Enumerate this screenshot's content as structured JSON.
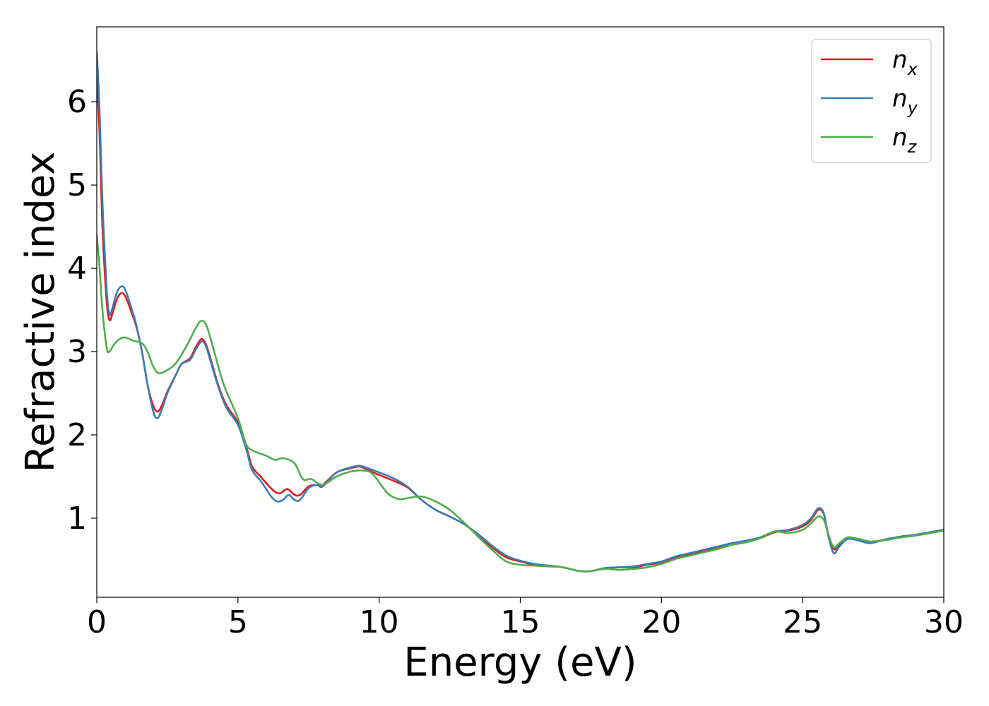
{
  "chart_data": {
    "type": "line",
    "xlabel": "Energy (eV)",
    "ylabel": "Refractive index",
    "xlim": [
      0,
      30
    ],
    "ylim": [
      0.05,
      6.9
    ],
    "xticks": [
      0,
      5,
      10,
      15,
      20,
      25,
      30
    ],
    "yticks": [
      1,
      2,
      3,
      4,
      5,
      6
    ],
    "grid": false,
    "legend_position": "top-right",
    "series": [
      {
        "name": "n",
        "subscript": "x",
        "color": "#e41a1c",
        "points": [
          [
            0,
            6.3
          ],
          [
            0.1,
            5.6
          ],
          [
            0.2,
            4.5
          ],
          [
            0.35,
            3.6
          ],
          [
            0.45,
            3.38
          ],
          [
            0.55,
            3.45
          ],
          [
            0.7,
            3.62
          ],
          [
            0.85,
            3.7
          ],
          [
            1.0,
            3.67
          ],
          [
            1.2,
            3.5
          ],
          [
            1.4,
            3.3
          ],
          [
            1.6,
            3.0
          ],
          [
            1.8,
            2.6
          ],
          [
            2.0,
            2.35
          ],
          [
            2.15,
            2.28
          ],
          [
            2.3,
            2.35
          ],
          [
            2.5,
            2.52
          ],
          [
            2.8,
            2.72
          ],
          [
            3.0,
            2.85
          ],
          [
            3.3,
            2.92
          ],
          [
            3.5,
            3.05
          ],
          [
            3.7,
            3.15
          ],
          [
            3.85,
            3.1
          ],
          [
            4.0,
            2.95
          ],
          [
            4.3,
            2.6
          ],
          [
            4.6,
            2.35
          ],
          [
            5.0,
            2.15
          ],
          [
            5.3,
            1.85
          ],
          [
            5.5,
            1.62
          ],
          [
            5.8,
            1.5
          ],
          [
            6.0,
            1.42
          ],
          [
            6.3,
            1.32
          ],
          [
            6.5,
            1.3
          ],
          [
            6.75,
            1.35
          ],
          [
            7.0,
            1.28
          ],
          [
            7.2,
            1.28
          ],
          [
            7.5,
            1.38
          ],
          [
            7.8,
            1.4
          ],
          [
            8.0,
            1.4
          ],
          [
            8.5,
            1.55
          ],
          [
            9.0,
            1.6
          ],
          [
            9.3,
            1.62
          ],
          [
            9.6,
            1.58
          ],
          [
            10.0,
            1.52
          ],
          [
            10.5,
            1.45
          ],
          [
            11.0,
            1.37
          ],
          [
            11.5,
            1.22
          ],
          [
            12.0,
            1.1
          ],
          [
            12.5,
            1.02
          ],
          [
            13.0,
            0.93
          ],
          [
            13.5,
            0.8
          ],
          [
            14.0,
            0.65
          ],
          [
            14.5,
            0.53
          ],
          [
            15.0,
            0.48
          ],
          [
            15.5,
            0.44
          ],
          [
            16.0,
            0.43
          ],
          [
            16.5,
            0.41
          ],
          [
            17.0,
            0.37
          ],
          [
            17.3,
            0.36
          ],
          [
            17.6,
            0.37
          ],
          [
            18.0,
            0.4
          ],
          [
            18.5,
            0.41
          ],
          [
            19.0,
            0.41
          ],
          [
            19.5,
            0.44
          ],
          [
            20.0,
            0.47
          ],
          [
            20.5,
            0.53
          ],
          [
            21.0,
            0.57
          ],
          [
            21.5,
            0.6
          ],
          [
            22.0,
            0.64
          ],
          [
            22.5,
            0.69
          ],
          [
            23.0,
            0.72
          ],
          [
            23.5,
            0.76
          ],
          [
            24.0,
            0.83
          ],
          [
            24.5,
            0.85
          ],
          [
            25.0,
            0.9
          ],
          [
            25.3,
            0.98
          ],
          [
            25.55,
            1.1
          ],
          [
            25.75,
            1.05
          ],
          [
            25.9,
            0.82
          ],
          [
            26.1,
            0.63
          ],
          [
            26.3,
            0.68
          ],
          [
            26.6,
            0.76
          ],
          [
            27.0,
            0.74
          ],
          [
            27.4,
            0.71
          ],
          [
            28.0,
            0.75
          ],
          [
            28.5,
            0.78
          ],
          [
            29.0,
            0.8
          ],
          [
            29.5,
            0.83
          ],
          [
            30.0,
            0.86
          ]
        ]
      },
      {
        "name": "n",
        "subscript": "y",
        "color": "#377eb8",
        "points": [
          [
            0,
            6.6
          ],
          [
            0.1,
            5.9
          ],
          [
            0.2,
            4.8
          ],
          [
            0.35,
            3.75
          ],
          [
            0.45,
            3.45
          ],
          [
            0.55,
            3.52
          ],
          [
            0.7,
            3.7
          ],
          [
            0.85,
            3.78
          ],
          [
            1.0,
            3.75
          ],
          [
            1.2,
            3.55
          ],
          [
            1.4,
            3.32
          ],
          [
            1.6,
            3.0
          ],
          [
            1.8,
            2.6
          ],
          [
            2.0,
            2.28
          ],
          [
            2.15,
            2.2
          ],
          [
            2.3,
            2.3
          ],
          [
            2.5,
            2.5
          ],
          [
            2.8,
            2.72
          ],
          [
            3.0,
            2.85
          ],
          [
            3.3,
            2.9
          ],
          [
            3.5,
            3.02
          ],
          [
            3.7,
            3.12
          ],
          [
            3.85,
            3.08
          ],
          [
            4.0,
            2.92
          ],
          [
            4.3,
            2.58
          ],
          [
            4.6,
            2.32
          ],
          [
            5.0,
            2.12
          ],
          [
            5.3,
            1.82
          ],
          [
            5.5,
            1.58
          ],
          [
            5.8,
            1.45
          ],
          [
            6.0,
            1.35
          ],
          [
            6.2,
            1.25
          ],
          [
            6.4,
            1.2
          ],
          [
            6.6,
            1.22
          ],
          [
            6.8,
            1.28
          ],
          [
            7.0,
            1.22
          ],
          [
            7.2,
            1.22
          ],
          [
            7.5,
            1.36
          ],
          [
            7.8,
            1.4
          ],
          [
            8.0,
            1.38
          ],
          [
            8.5,
            1.55
          ],
          [
            9.0,
            1.61
          ],
          [
            9.3,
            1.63
          ],
          [
            9.6,
            1.6
          ],
          [
            10.0,
            1.55
          ],
          [
            10.5,
            1.48
          ],
          [
            11.0,
            1.38
          ],
          [
            11.5,
            1.22
          ],
          [
            12.0,
            1.1
          ],
          [
            12.5,
            1.02
          ],
          [
            13.0,
            0.93
          ],
          [
            13.5,
            0.81
          ],
          [
            14.0,
            0.67
          ],
          [
            14.5,
            0.55
          ],
          [
            15.0,
            0.49
          ],
          [
            15.5,
            0.45
          ],
          [
            16.0,
            0.43
          ],
          [
            16.5,
            0.41
          ],
          [
            17.0,
            0.37
          ],
          [
            17.3,
            0.36
          ],
          [
            17.6,
            0.37
          ],
          [
            18.0,
            0.4
          ],
          [
            18.5,
            0.41
          ],
          [
            19.0,
            0.42
          ],
          [
            19.5,
            0.45
          ],
          [
            20.0,
            0.48
          ],
          [
            20.5,
            0.54
          ],
          [
            21.0,
            0.58
          ],
          [
            21.5,
            0.62
          ],
          [
            22.0,
            0.66
          ],
          [
            22.5,
            0.7
          ],
          [
            23.0,
            0.73
          ],
          [
            23.5,
            0.77
          ],
          [
            24.0,
            0.84
          ],
          [
            24.5,
            0.86
          ],
          [
            25.0,
            0.92
          ],
          [
            25.3,
            1.0
          ],
          [
            25.55,
            1.12
          ],
          [
            25.75,
            1.06
          ],
          [
            25.9,
            0.8
          ],
          [
            26.1,
            0.58
          ],
          [
            26.3,
            0.66
          ],
          [
            26.6,
            0.75
          ],
          [
            27.0,
            0.73
          ],
          [
            27.4,
            0.7
          ],
          [
            28.0,
            0.75
          ],
          [
            28.5,
            0.78
          ],
          [
            29.0,
            0.8
          ],
          [
            29.5,
            0.83
          ],
          [
            30.0,
            0.86
          ]
        ]
      },
      {
        "name": "n",
        "subscript": "z",
        "color": "#4daf4a",
        "points": [
          [
            0,
            4.4
          ],
          [
            0.1,
            4.0
          ],
          [
            0.2,
            3.5
          ],
          [
            0.35,
            3.05
          ],
          [
            0.45,
            3.0
          ],
          [
            0.6,
            3.08
          ],
          [
            0.8,
            3.15
          ],
          [
            1.0,
            3.17
          ],
          [
            1.3,
            3.13
          ],
          [
            1.6,
            3.1
          ],
          [
            1.8,
            3.0
          ],
          [
            2.0,
            2.82
          ],
          [
            2.2,
            2.74
          ],
          [
            2.5,
            2.78
          ],
          [
            2.8,
            2.86
          ],
          [
            3.2,
            3.08
          ],
          [
            3.5,
            3.28
          ],
          [
            3.7,
            3.37
          ],
          [
            3.9,
            3.3
          ],
          [
            4.2,
            2.95
          ],
          [
            4.5,
            2.6
          ],
          [
            5.0,
            2.2
          ],
          [
            5.3,
            1.88
          ],
          [
            5.6,
            1.8
          ],
          [
            6.0,
            1.75
          ],
          [
            6.3,
            1.7
          ],
          [
            6.6,
            1.72
          ],
          [
            7.0,
            1.66
          ],
          [
            7.3,
            1.47
          ],
          [
            7.6,
            1.47
          ],
          [
            8.0,
            1.4
          ],
          [
            8.5,
            1.5
          ],
          [
            9.0,
            1.56
          ],
          [
            9.5,
            1.57
          ],
          [
            9.8,
            1.52
          ],
          [
            10.3,
            1.3
          ],
          [
            10.7,
            1.23
          ],
          [
            11.0,
            1.24
          ],
          [
            11.5,
            1.26
          ],
          [
            12.0,
            1.2
          ],
          [
            12.5,
            1.1
          ],
          [
            13.0,
            0.95
          ],
          [
            13.5,
            0.78
          ],
          [
            14.0,
            0.62
          ],
          [
            14.5,
            0.48
          ],
          [
            15.0,
            0.44
          ],
          [
            15.5,
            0.43
          ],
          [
            16.0,
            0.42
          ],
          [
            16.5,
            0.41
          ],
          [
            17.0,
            0.37
          ],
          [
            17.3,
            0.36
          ],
          [
            17.6,
            0.37
          ],
          [
            18.0,
            0.39
          ],
          [
            18.5,
            0.38
          ],
          [
            19.0,
            0.39
          ],
          [
            19.5,
            0.41
          ],
          [
            20.0,
            0.45
          ],
          [
            20.5,
            0.51
          ],
          [
            21.0,
            0.55
          ],
          [
            21.5,
            0.59
          ],
          [
            22.0,
            0.63
          ],
          [
            22.5,
            0.68
          ],
          [
            23.0,
            0.71
          ],
          [
            23.5,
            0.76
          ],
          [
            24.0,
            0.84
          ],
          [
            24.5,
            0.82
          ],
          [
            25.0,
            0.86
          ],
          [
            25.3,
            0.94
          ],
          [
            25.55,
            1.02
          ],
          [
            25.75,
            0.98
          ],
          [
            25.9,
            0.82
          ],
          [
            26.1,
            0.65
          ],
          [
            26.3,
            0.7
          ],
          [
            26.6,
            0.77
          ],
          [
            27.0,
            0.75
          ],
          [
            27.4,
            0.72
          ],
          [
            28.0,
            0.74
          ],
          [
            28.5,
            0.77
          ],
          [
            29.0,
            0.79
          ],
          [
            29.5,
            0.82
          ],
          [
            30.0,
            0.85
          ]
        ]
      }
    ]
  }
}
